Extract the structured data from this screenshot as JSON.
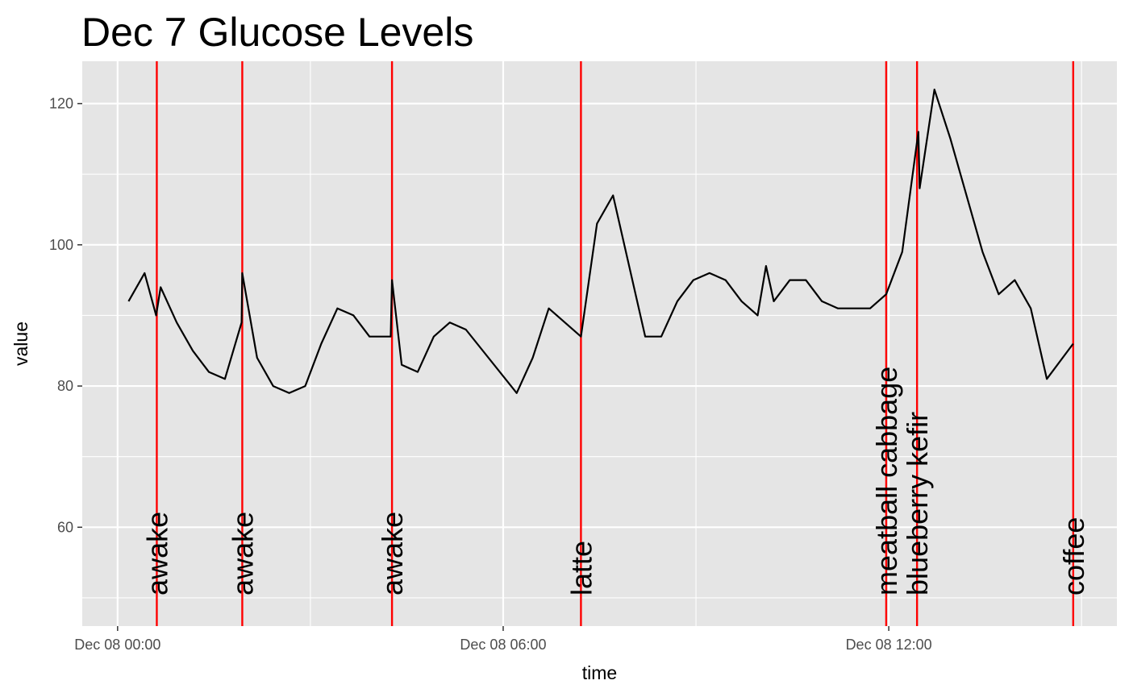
{
  "chart_data": {
    "type": "line",
    "title": "Dec 7 Glucose Levels",
    "xlabel": "time",
    "ylabel": "value",
    "x_unit": "hours since Dec 08 00:00",
    "xlim": [
      -0.55,
      15.55
    ],
    "ylim": [
      46,
      126
    ],
    "x_ticks": [
      {
        "hour": 0,
        "label": "Dec 08 00:00"
      },
      {
        "hour": 6,
        "label": "Dec 08 06:00"
      },
      {
        "hour": 12,
        "label": "Dec 08 12:00"
      }
    ],
    "y_ticks": [
      60,
      80,
      100,
      120
    ],
    "grid": true,
    "series": [
      {
        "name": "glucose",
        "color": "#000000",
        "points": [
          [
            0.17,
            92
          ],
          [
            0.42,
            96
          ],
          [
            0.6,
            90
          ],
          [
            0.67,
            94
          ],
          [
            0.92,
            89
          ],
          [
            1.17,
            85
          ],
          [
            1.42,
            82
          ],
          [
            1.67,
            81
          ],
          [
            1.93,
            89
          ],
          [
            1.94,
            96
          ],
          [
            2.17,
            84
          ],
          [
            2.42,
            80
          ],
          [
            2.67,
            79
          ],
          [
            2.92,
            80
          ],
          [
            3.17,
            86
          ],
          [
            3.42,
            91
          ],
          [
            3.67,
            90
          ],
          [
            3.92,
            87
          ],
          [
            4.25,
            87
          ],
          [
            4.27,
            95
          ],
          [
            4.42,
            83
          ],
          [
            4.67,
            82
          ],
          [
            4.92,
            87
          ],
          [
            5.17,
            89
          ],
          [
            5.42,
            88
          ],
          [
            6.21,
            79
          ],
          [
            6.46,
            84
          ],
          [
            6.71,
            91
          ],
          [
            7.21,
            87
          ],
          [
            7.46,
            103
          ],
          [
            7.71,
            107
          ],
          [
            8.21,
            87
          ],
          [
            8.46,
            87
          ],
          [
            8.71,
            92
          ],
          [
            8.96,
            95
          ],
          [
            9.21,
            96
          ],
          [
            9.46,
            95
          ],
          [
            9.71,
            92
          ],
          [
            9.96,
            90
          ],
          [
            10.09,
            97
          ],
          [
            10.21,
            92
          ],
          [
            10.46,
            95
          ],
          [
            10.71,
            95
          ],
          [
            10.96,
            92
          ],
          [
            11.21,
            91
          ],
          [
            11.71,
            91
          ],
          [
            11.96,
            93
          ],
          [
            12.21,
            99
          ],
          [
            12.46,
            116
          ],
          [
            12.48,
            108
          ],
          [
            12.71,
            122
          ],
          [
            12.96,
            115
          ],
          [
            13.46,
            99
          ],
          [
            13.71,
            93
          ],
          [
            13.96,
            95
          ],
          [
            14.21,
            91
          ],
          [
            14.46,
            81
          ],
          [
            14.87,
            86
          ]
        ]
      }
    ],
    "events": [
      {
        "hour": 0.61,
        "label": "awake"
      },
      {
        "hour": 1.94,
        "label": "awake"
      },
      {
        "hour": 4.27,
        "label": "awake"
      },
      {
        "hour": 7.21,
        "label": "latte"
      },
      {
        "hour": 11.96,
        "label": "meatball cabbage"
      },
      {
        "hour": 12.44,
        "label": "blueberry kefir"
      },
      {
        "hour": 14.87,
        "label": "coffee"
      }
    ],
    "event_line_color": "#ff0000",
    "event_label_anchor_value": 50,
    "panel_background": "#e5e5e5",
    "grid_color": "#ffffff"
  }
}
